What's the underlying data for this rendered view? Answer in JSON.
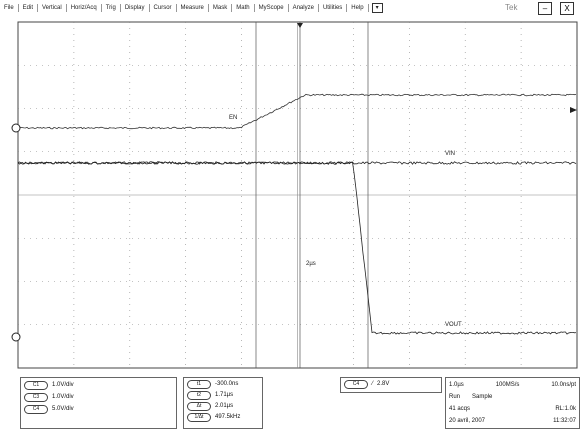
{
  "menu": [
    "File",
    "Edit",
    "Vertical",
    "Horiz/Acq",
    "Trig",
    "Display",
    "Cursor",
    "Measure",
    "Mask",
    "Math",
    "MyScope",
    "Analyze",
    "Utilities",
    "Help"
  ],
  "brand": "Tek",
  "traces": {
    "en": "EN",
    "vin": "VIN",
    "vout": "VOUT"
  },
  "cursor_label": "2µs",
  "channels": [
    {
      "id": "C1",
      "scale": "1.0V/div"
    },
    {
      "id": "C3",
      "scale": "1.0V/div"
    },
    {
      "id": "C4",
      "scale": "5.0V/div"
    }
  ],
  "cursors": [
    {
      "id": "t1",
      "value": "-300.0ns"
    },
    {
      "id": "t2",
      "value": "1.71µs"
    },
    {
      "id": "Δt",
      "value": "2.01µs"
    },
    {
      "id": "1/Δt",
      "value": "497.5kHz"
    }
  ],
  "trigger": {
    "source": "C4",
    "level": "2.8V"
  },
  "acquisition": {
    "timebase": "1.0µs",
    "rate": "100MS/s",
    "resolution": "10.0ns/pt",
    "state": "Run",
    "mode": "Sample",
    "count": "41 acqs",
    "record": "RL:1.0k",
    "date": "20 avril, 2007",
    "time": "11:32:07"
  }
}
